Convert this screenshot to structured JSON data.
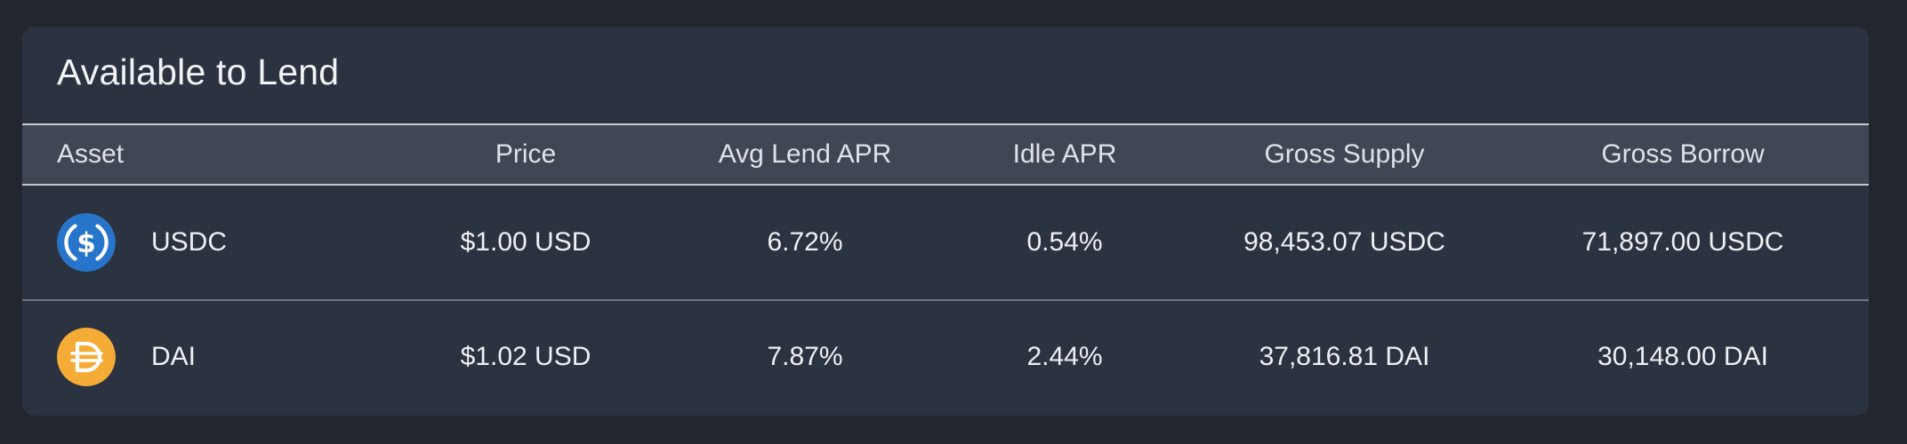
{
  "panel": {
    "title": "Available to Lend"
  },
  "table": {
    "columns": {
      "asset": "Asset",
      "price": "Price",
      "avg_lend_apr": "Avg Lend APR",
      "idle_apr": "Idle APR",
      "gross_supply": "Gross Supply",
      "gross_borrow": "Gross Borrow"
    },
    "rows": [
      {
        "icon": "usdc-coin-icon",
        "asset": "USDC",
        "price": "$1.00 USD",
        "avg_lend_apr": "6.72%",
        "idle_apr": "0.54%",
        "gross_supply": "98,453.07 USDC",
        "gross_borrow": "71,897.00 USDC"
      },
      {
        "icon": "dai-coin-icon",
        "asset": "DAI",
        "price": "$1.02 USD",
        "avg_lend_apr": "7.87%",
        "idle_apr": "2.44%",
        "gross_supply": "37,816.81 DAI",
        "gross_borrow": "30,148.00 DAI"
      }
    ]
  },
  "colors": {
    "page_background": "#22262e",
    "panel_background": "#2c3340",
    "header_background": "#404754",
    "usdc_blue": "#2775ca",
    "dai_yellow": "#f5ac37"
  }
}
